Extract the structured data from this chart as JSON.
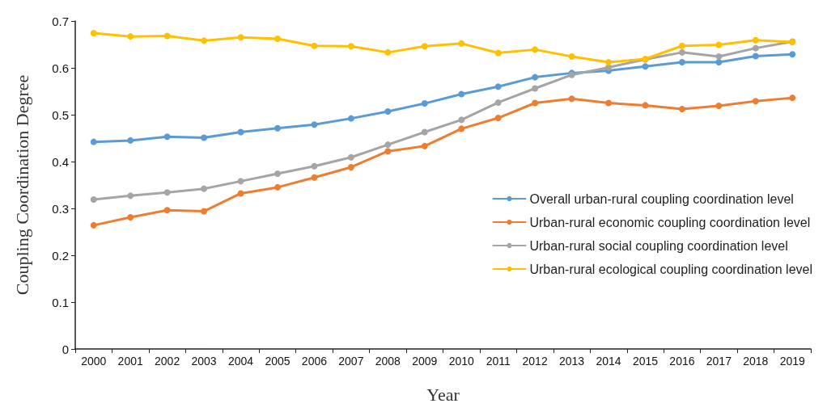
{
  "chart_data": {
    "type": "line",
    "xlabel": "Year",
    "ylabel": "Coupling Coordination Degree",
    "categories": [
      "2000",
      "2001",
      "2002",
      "2003",
      "2004",
      "2005",
      "2006",
      "2007",
      "2008",
      "2009",
      "2010",
      "2011",
      "2012",
      "2013",
      "2014",
      "2015",
      "2016",
      "2017",
      "2018",
      "2019"
    ],
    "series": [
      {
        "name": "Overall urban-rural coupling coordination level",
        "color": "#5b9bd5",
        "values": [
          0.442,
          0.445,
          0.453,
          0.451,
          0.463,
          0.471,
          0.479,
          0.492,
          0.507,
          0.524,
          0.544,
          0.56,
          0.58,
          0.589,
          0.594,
          0.603,
          0.612,
          0.612,
          0.625,
          0.629
        ]
      },
      {
        "name": "Urban-rural economic coupling coordination level",
        "color": "#ed7d31",
        "values": [
          0.264,
          0.281,
          0.296,
          0.294,
          0.332,
          0.345,
          0.366,
          0.388,
          0.422,
          0.433,
          0.47,
          0.493,
          0.525,
          0.534,
          0.525,
          0.52,
          0.512,
          0.519,
          0.529,
          0.536
        ]
      },
      {
        "name": "Urban-rural social coupling coordination level",
        "color": "#a5a5a5",
        "values": [
          0.319,
          0.327,
          0.334,
          0.342,
          0.358,
          0.374,
          0.39,
          0.409,
          0.436,
          0.463,
          0.489,
          0.526,
          0.556,
          0.585,
          0.601,
          0.618,
          0.633,
          0.624,
          0.642,
          0.656
        ]
      },
      {
        "name": "Urban-rural ecological coupling coordination level",
        "color": "#ffc000",
        "values": [
          0.674,
          0.667,
          0.668,
          0.658,
          0.665,
          0.662,
          0.647,
          0.646,
          0.633,
          0.646,
          0.652,
          0.632,
          0.639,
          0.624,
          0.612,
          0.619,
          0.647,
          0.649,
          0.659,
          0.655
        ]
      }
    ],
    "ylim": [
      0,
      0.7
    ],
    "yticks": [
      0,
      0.1,
      0.2,
      0.3,
      0.4,
      0.5,
      0.6,
      0.7
    ],
    "grid": false,
    "legend": "right",
    "marker": "circle",
    "line_style": "solid"
  }
}
